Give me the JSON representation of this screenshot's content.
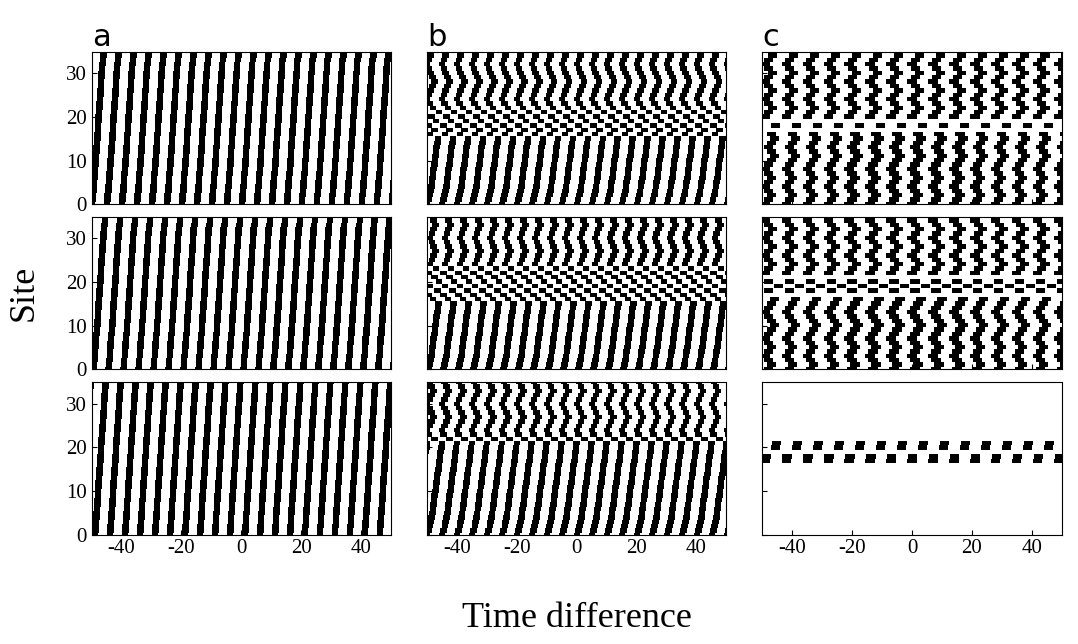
{
  "xlabel": "Time difference",
  "ylabel": "Site",
  "sites": [
    0,
    1,
    2,
    3,
    4,
    5,
    6,
    7,
    8,
    9,
    10,
    11,
    12,
    13,
    14,
    15,
    16,
    17,
    18,
    19,
    20,
    21,
    22,
    23,
    24,
    25,
    26,
    27,
    28,
    29,
    30,
    31,
    32,
    33,
    34,
    35
  ],
  "chart_data": [
    {
      "type": "stripes",
      "title": "a",
      "period": 5,
      "color": "#000000",
      "tick_labels": "y",
      "xlim": [
        -50,
        50
      ],
      "ylim": [
        0,
        35
      ],
      "xticks": [
        -40,
        -20,
        0,
        20,
        40
      ],
      "yticks": [
        0,
        10,
        20,
        30
      ],
      "phase": [
        0.0,
        0.1,
        0.2,
        0.4,
        0.5,
        0.6,
        0.7,
        0.8,
        1.0,
        1.1,
        1.2,
        1.3,
        1.4,
        1.5,
        1.6,
        1.7,
        1.8,
        1.9,
        2.0,
        2.1,
        2.2,
        2.3,
        2.4,
        2.5,
        2.6,
        2.7,
        2.8,
        2.9,
        3.0,
        3.1,
        3.2,
        3.3,
        3.4,
        3.6,
        3.8,
        4.0
      ]
    },
    {
      "type": "stripes",
      "title": "b",
      "period": 5,
      "color": "#000000",
      "tick_labels": false,
      "xlim": [
        -50,
        50
      ],
      "ylim": [
        0,
        35
      ],
      "xticks": [
        -40,
        -20,
        0,
        20,
        40
      ],
      "yticks": [
        0,
        10,
        20,
        30
      ],
      "phase": [
        0.0,
        0.4,
        0.8,
        1.1,
        1.4,
        1.6,
        1.8,
        2.0,
        2.2,
        2.4,
        2.6,
        2.8,
        3.0,
        3.2,
        3.4,
        3.6,
        1.0,
        2.5,
        0.5,
        3.0,
        1.5,
        4.0,
        2.0,
        0.8,
        0.0,
        0.6,
        1.2,
        1.8,
        2.4,
        1.8,
        1.2,
        0.6,
        0.0,
        0.6,
        1.2,
        1.8
      ]
    },
    {
      "type": "stripes",
      "title": "c",
      "period": 7,
      "color": "#000000",
      "tick_labels": false,
      "xlim": [
        -50,
        50
      ],
      "ylim": [
        0,
        35
      ],
      "xticks": [
        -40,
        -20,
        0,
        20,
        40
      ],
      "yticks": [
        0,
        10,
        20,
        30
      ],
      "phase": [
        0.0,
        1.0,
        2.0,
        1.0,
        0.0,
        1.0,
        2.0,
        1.0,
        0.0,
        1.0,
        2.0,
        3.0,
        2.0,
        1.0,
        2.0,
        3.0,
        2.0,
        null,
        3.5,
        null,
        0.0,
        1.2,
        2.4,
        1.2,
        0.0,
        1.2,
        2.4,
        1.2,
        0.0,
        1.2,
        2.4,
        1.2,
        0.0,
        1.2,
        2.4,
        1.2
      ]
    },
    {
      "type": "stripes",
      "period": 5,
      "color": "#000000",
      "tick_labels": "y",
      "xlim": [
        -50,
        50
      ],
      "ylim": [
        0,
        35
      ],
      "xticks": [
        -40,
        -20,
        0,
        20,
        40
      ],
      "yticks": [
        0,
        10,
        20,
        30
      ],
      "phase": [
        0.5,
        0.6,
        0.7,
        0.9,
        1.0,
        1.1,
        1.2,
        1.3,
        1.5,
        1.6,
        1.7,
        1.8,
        1.9,
        2.0,
        2.1,
        2.2,
        2.3,
        2.4,
        2.5,
        2.6,
        2.7,
        2.8,
        2.9,
        3.0,
        3.1,
        3.2,
        3.3,
        3.4,
        3.5,
        3.6,
        3.7,
        3.8,
        3.9,
        4.1,
        4.3,
        4.5
      ]
    },
    {
      "type": "stripes",
      "period": 5,
      "color": "#000000",
      "tick_labels": false,
      "xlim": [
        -50,
        50
      ],
      "ylim": [
        0,
        35
      ],
      "xticks": [
        -40,
        -20,
        0,
        20,
        40
      ],
      "yticks": [
        0,
        10,
        20,
        30
      ],
      "phase": [
        0.5,
        0.8,
        1.1,
        1.4,
        1.6,
        1.8,
        2.0,
        2.2,
        2.4,
        2.6,
        2.8,
        3.0,
        3.2,
        3.4,
        3.6,
        3.8,
        2.0,
        0.5,
        3.5,
        1.0,
        4.0,
        2.5,
        0.5,
        3.0,
        1.0,
        1.6,
        2.2,
        2.8,
        2.2,
        1.6,
        1.0,
        1.6,
        2.2,
        2.8,
        2.2,
        1.6
      ]
    },
    {
      "type": "stripes",
      "period": 7,
      "color": "#000000",
      "tick_labels": false,
      "xlim": [
        -50,
        50
      ],
      "ylim": [
        0,
        35
      ],
      "xticks": [
        -40,
        -20,
        0,
        20,
        40
      ],
      "yticks": [
        0,
        10,
        20,
        30
      ],
      "phase": [
        1.0,
        2.0,
        1.0,
        0.0,
        1.0,
        2.0,
        1.0,
        0.0,
        1.0,
        2.0,
        3.0,
        2.0,
        1.0,
        0.0,
        1.0,
        2.0,
        3.0,
        null,
        1.0,
        4.5,
        1.0,
        null,
        0.0,
        1.2,
        2.4,
        1.2,
        0.0,
        1.2,
        2.4,
        1.2,
        0.0,
        1.2,
        2.4,
        1.2,
        0.0,
        1.2
      ]
    },
    {
      "type": "stripes",
      "period": 5,
      "color": "#000000",
      "tick_labels": true,
      "xlim": [
        -50,
        50
      ],
      "ylim": [
        0,
        35
      ],
      "xticks": [
        -40,
        -20,
        0,
        20,
        40
      ],
      "yticks": [
        0,
        10,
        20,
        30
      ],
      "phase": [
        1.0,
        1.1,
        1.2,
        1.3,
        1.4,
        1.5,
        1.6,
        1.7,
        1.8,
        1.9,
        2.0,
        2.1,
        2.2,
        2.3,
        2.4,
        2.5,
        2.6,
        2.7,
        2.8,
        2.9,
        3.0,
        3.1,
        3.2,
        3.3,
        3.4,
        3.5,
        3.6,
        3.7,
        3.8,
        3.9,
        4.0,
        4.1,
        4.2,
        4.3,
        4.4,
        4.5
      ]
    },
    {
      "type": "stripes",
      "period": 5,
      "color": "#000000",
      "tick_labels": "x",
      "xlim": [
        -50,
        50
      ],
      "ylim": [
        0,
        35
      ],
      "xticks": [
        -40,
        -20,
        0,
        20,
        40
      ],
      "yticks": [
        0,
        10,
        20,
        30
      ],
      "phase": [
        0.0,
        0.5,
        0.9,
        1.2,
        1.5,
        1.7,
        1.9,
        2.1,
        2.3,
        2.5,
        2.7,
        2.9,
        3.1,
        3.3,
        3.5,
        3.7,
        3.9,
        4.1,
        4.3,
        4.5,
        4.7,
        4.9,
        2.5,
        0.5,
        0.0,
        0.7,
        1.4,
        2.1,
        1.4,
        0.7,
        0.0,
        0.7,
        1.4,
        2.1,
        1.4,
        0.7
      ]
    },
    {
      "type": "stripes",
      "period": 7,
      "color": "#000000",
      "tick_labels": "x",
      "xlim": [
        -50,
        50
      ],
      "ylim": [
        0,
        35
      ],
      "xticks": [
        -40,
        -20,
        0,
        20,
        40
      ],
      "yticks": [
        0,
        10,
        20,
        30
      ],
      "phase": [
        null,
        null,
        null,
        null,
        null,
        null,
        null,
        null,
        null,
        null,
        null,
        null,
        null,
        null,
        null,
        null,
        null,
        0.0,
        0.3,
        null,
        3.5,
        3.8,
        null,
        null,
        null,
        null,
        null,
        null,
        null,
        null,
        null,
        null,
        null,
        null,
        null,
        null
      ]
    }
  ]
}
